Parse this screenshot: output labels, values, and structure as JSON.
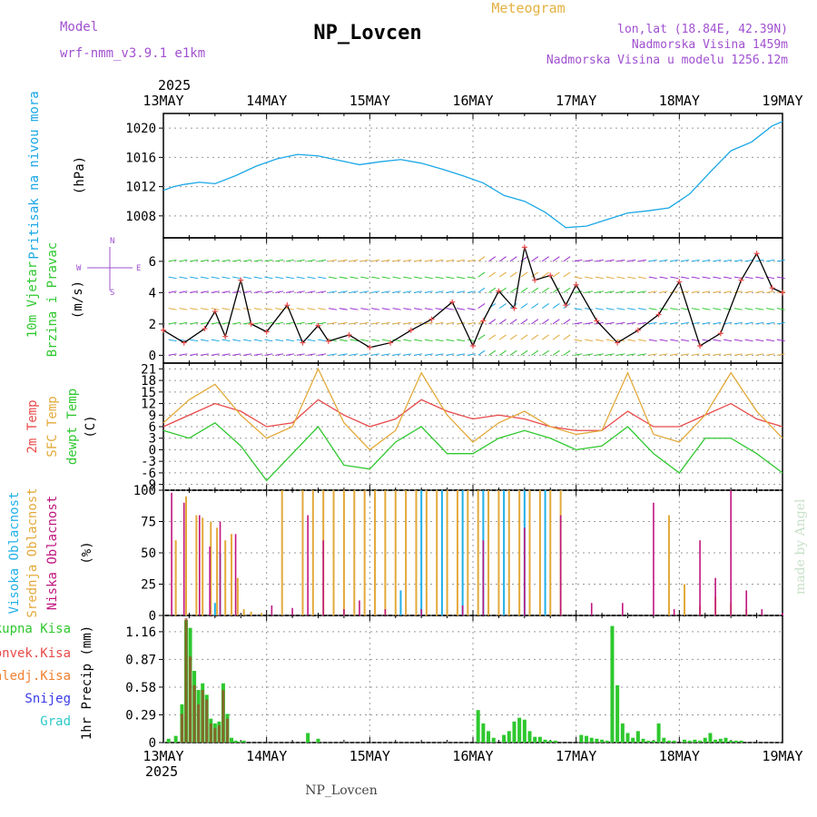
{
  "header": {
    "model_label": "Model",
    "model_name": "wrf-nmm_v3.9.1 e1km",
    "station": "NP_Lovcen",
    "product": "Meteogram",
    "lonlat": "lon,lat (18.84E, 42.39N)",
    "altitude": "Nadmorska Visina 1459m",
    "model_altitude": "Nadmorska Visina u modelu 1256.12m",
    "footer_station": "NP_Lovcen",
    "credit": "made by Angel"
  },
  "time_axis": {
    "year": "2025",
    "labels": [
      "13MAY",
      "14MAY",
      "15MAY",
      "16MAY",
      "17MAY",
      "18MAY",
      "19MAY"
    ]
  },
  "colors": {
    "pressure": "#1aa7e6",
    "t2m": "#e84a4a",
    "sfc": "#e3a93a",
    "dewpt": "#2ec82e",
    "high_cloud": "#22b0e8",
    "mid_cloud": "#e3a93a",
    "low_cloud": "#c0157f",
    "total_precip": "#2ec82e",
    "conv_precip": "#e84a4a",
    "ice_precip": "#f08030",
    "snow": "#3a3ae8",
    "hail": "#2ec8c8",
    "wind_barb": "#9a2ad0"
  },
  "chart_data": [
    {
      "type": "line",
      "panel": "pressure",
      "ylabel_name": "Pritisak na nivou mora",
      "unit": "(hPa)",
      "yticks": [
        "1020",
        "1016",
        "1012",
        "1008"
      ],
      "ylim": [
        1005,
        1022
      ],
      "x_days": [
        0,
        0.1,
        0.2,
        0.35,
        0.5,
        0.7,
        0.9,
        1.1,
        1.3,
        1.5,
        1.7,
        1.9,
        2.1,
        2.3,
        2.5,
        2.7,
        2.9,
        3.1,
        3.3,
        3.5,
        3.7,
        3.9,
        4.1,
        4.3,
        4.5,
        4.7,
        4.9,
        5.1,
        5.3,
        5.5,
        5.7,
        5.9,
        6.0
      ],
      "series": [
        {
          "values": [
            1011.5,
            1012,
            1012.3,
            1012.6,
            1012.4,
            1013.5,
            1014.8,
            1015.8,
            1016.4,
            1016.2,
            1015.6,
            1015,
            1015.4,
            1015.7,
            1015.2,
            1014.4,
            1013.5,
            1012.5,
            1010.8,
            1010,
            1008.5,
            1006.4,
            1006.6,
            1007.5,
            1008.4,
            1008.7,
            1009.1,
            1011,
            1014,
            1016.9,
            1018.1,
            1020.3,
            1020.9
          ]
        }
      ]
    },
    {
      "type": "line",
      "panel": "wind",
      "ylabel_name": "10m Vjetar Brzina i Pravac",
      "unit": "(m/s)",
      "compass": [
        "N",
        "W",
        "E",
        "S"
      ],
      "yticks": [
        "6",
        "4",
        "2",
        "0"
      ],
      "ylim": [
        -0.5,
        7.5
      ],
      "x_days": [
        0,
        0.2,
        0.4,
        0.5,
        0.6,
        0.75,
        0.85,
        1.0,
        1.2,
        1.35,
        1.5,
        1.6,
        1.8,
        2.0,
        2.2,
        2.4,
        2.6,
        2.8,
        3.0,
        3.1,
        3.25,
        3.4,
        3.5,
        3.6,
        3.75,
        3.9,
        4.0,
        4.2,
        4.4,
        4.6,
        4.8,
        5.0,
        5.2,
        5.4,
        5.6,
        5.75,
        5.9,
        6.0
      ],
      "series": [
        {
          "values": [
            1.6,
            0.8,
            1.7,
            2.8,
            1.2,
            4.8,
            2.0,
            1.5,
            3.2,
            0.8,
            1.9,
            0.9,
            1.3,
            0.5,
            0.8,
            1.6,
            2.3,
            3.4,
            0.6,
            2.2,
            4.1,
            3.0,
            6.9,
            4.8,
            5.1,
            3.2,
            4.5,
            2.2,
            0.8,
            1.6,
            2.6,
            4.7,
            0.6,
            1.4,
            4.8,
            6.5,
            4.3,
            4.0
          ]
        }
      ]
    },
    {
      "type": "line",
      "panel": "temperature",
      "ylabel_names": [
        "2m Temp",
        "SFC Temp",
        "dewpt Temp"
      ],
      "unit": "(C)",
      "yticks": [
        "21",
        "18",
        "15",
        "12",
        "9",
        "6",
        "3",
        "0",
        "-3",
        "-6",
        "-9"
      ],
      "ylim": [
        -10.5,
        22.5
      ],
      "x_days": [
        0,
        0.25,
        0.5,
        0.75,
        1.0,
        1.25,
        1.5,
        1.75,
        2.0,
        2.25,
        2.5,
        2.75,
        3.0,
        3.25,
        3.5,
        3.75,
        4.0,
        4.25,
        4.5,
        4.75,
        5.0,
        5.25,
        5.5,
        5.75,
        6.0
      ],
      "series": [
        {
          "name": "2m Temp",
          "values": [
            6,
            9,
            12,
            10,
            6,
            7,
            13,
            9,
            6,
            8,
            13,
            10,
            8,
            9,
            8,
            6,
            5,
            5,
            10,
            6,
            6,
            9,
            12,
            8,
            6
          ]
        },
        {
          "name": "SFC Temp",
          "values": [
            7,
            13,
            17,
            9,
            3,
            6,
            21,
            7,
            0,
            5,
            20,
            9,
            2,
            7,
            10,
            6,
            4,
            5,
            20,
            4,
            2,
            9,
            20,
            10,
            3
          ]
        },
        {
          "name": "dewpt Temp",
          "values": [
            5,
            3,
            7,
            1,
            -8,
            -1,
            6,
            -4,
            -5,
            2,
            6,
            -1,
            -1,
            3,
            5,
            3,
            0,
            1,
            6,
            -1,
            -6,
            3,
            3,
            -1,
            -6
          ]
        }
      ]
    },
    {
      "type": "bar",
      "panel": "cloud",
      "ylabel_names": [
        "Visoka Oblacnost",
        "Srednja Oblacnost",
        "Niska Oblacnost"
      ],
      "unit": "(%)",
      "yticks": [
        "100",
        "75",
        "50",
        "25",
        "0"
      ],
      "ylim": [
        0,
        100
      ],
      "low_x_days": [
        0.08,
        0.2,
        0.35,
        0.45,
        0.55,
        0.7,
        1.05,
        1.25,
        1.4,
        1.55,
        1.75,
        1.9,
        2.15,
        2.5,
        2.9,
        3.1,
        3.5,
        3.85,
        4.15,
        4.45,
        4.75,
        4.95,
        5.2,
        5.35,
        5.5,
        5.65,
        5.8,
        6.0
      ],
      "low_values": [
        98,
        90,
        80,
        55,
        75,
        65,
        8,
        6,
        80,
        60,
        5,
        12,
        5,
        5,
        8,
        60,
        70,
        80,
        10,
        10,
        90,
        5,
        60,
        30,
        100,
        20,
        5,
        2
      ],
      "mid_x_days": [
        0.12,
        0.22,
        0.32,
        0.38,
        0.46,
        0.52,
        0.6,
        0.66,
        0.72,
        0.78,
        0.85,
        0.95,
        1.15,
        1.35,
        1.45,
        1.55,
        1.65,
        1.75,
        1.85,
        1.95,
        2.05,
        2.15,
        2.25,
        2.35,
        2.45,
        2.55,
        2.65,
        2.75,
        2.85,
        2.95,
        3.05,
        3.15,
        3.25,
        3.35,
        3.45,
        3.55,
        3.65,
        3.75,
        3.85,
        4.9,
        5.05,
        5.2,
        5.35,
        5.5,
        5.65
      ],
      "mid_values": [
        60,
        95,
        80,
        78,
        75,
        70,
        60,
        65,
        30,
        5,
        3,
        2,
        100,
        100,
        100,
        100,
        100,
        100,
        100,
        100,
        100,
        100,
        100,
        100,
        100,
        100,
        100,
        100,
        100,
        100,
        100,
        100,
        100,
        100,
        100,
        100,
        100,
        100,
        100,
        80,
        25,
        8,
        15,
        10,
        5
      ],
      "high_x_days": [
        0.5,
        0.55,
        2.3,
        2.5,
        2.7,
        2.9,
        3.1,
        3.3,
        3.5,
        3.7
      ],
      "high_values": [
        10,
        50,
        20,
        100,
        100,
        100,
        100,
        100,
        100,
        100
      ]
    },
    {
      "type": "bar",
      "panel": "precip",
      "ylabel_names": [
        "Ukupna Kisa",
        "Konvek.Kisa",
        "Zaledj.Kisa",
        "Snijeg",
        "Grad"
      ],
      "unit": "1hr Precip (mm)",
      "yticks": [
        "1.16",
        "0.87",
        "0.58",
        "0.29",
        "0"
      ],
      "ylim": [
        0,
        1.33
      ],
      "x_days": [
        0.05,
        0.12,
        0.18,
        0.22,
        0.26,
        0.3,
        0.34,
        0.38,
        0.42,
        0.46,
        0.5,
        0.54,
        0.58,
        0.62,
        0.66,
        0.7,
        0.74,
        0.78,
        1.4,
        1.5,
        3.05,
        3.1,
        3.15,
        3.2,
        3.3,
        3.35,
        3.4,
        3.45,
        3.5,
        3.55,
        3.6,
        3.65,
        3.7,
        3.75,
        3.8,
        4.05,
        4.1,
        4.15,
        4.2,
        4.25,
        4.3,
        4.35,
        4.4,
        4.45,
        4.5,
        4.55,
        4.6,
        4.65,
        4.7,
        4.75,
        4.8,
        4.85,
        4.9,
        4.95,
        5.05,
        5.1,
        5.15,
        5.2,
        5.25,
        5.3,
        5.35,
        5.4,
        5.45,
        5.5,
        5.55,
        5.6
      ],
      "values": [
        0.04,
        0.07,
        0.4,
        1.28,
        1.2,
        0.75,
        0.55,
        0.62,
        0.5,
        0.25,
        0.2,
        0.22,
        0.62,
        0.3,
        0.05,
        0.02,
        0.01,
        0.02,
        0.1,
        0.04,
        0.34,
        0.2,
        0.12,
        0.05,
        0.08,
        0.12,
        0.22,
        0.26,
        0.24,
        0.12,
        0.06,
        0.06,
        0.03,
        0.02,
        0.02,
        0.08,
        0.07,
        0.05,
        0.04,
        0.03,
        0.02,
        1.22,
        0.6,
        0.2,
        0.1,
        0.05,
        0.12,
        0.04,
        0.02,
        0.02,
        0.2,
        0.05,
        0.02,
        0.02,
        0.03,
        0.02,
        0.03,
        0.02,
        0.05,
        0.1,
        0.03,
        0.04,
        0.05,
        0.02,
        0.02,
        0.02
      ],
      "conv_values": [
        0,
        0,
        0.3,
        1.3,
        0.9,
        0.6,
        0.4,
        0.55,
        0.45,
        0.2,
        0.15,
        0.18,
        0.55,
        0.25,
        0,
        0,
        0,
        0,
        0,
        0,
        0,
        0,
        0,
        0,
        0,
        0,
        0,
        0,
        0,
        0,
        0,
        0,
        0,
        0,
        0,
        0,
        0,
        0,
        0,
        0,
        0,
        0,
        0,
        0,
        0,
        0,
        0,
        0,
        0,
        0,
        0,
        0,
        0,
        0,
        0,
        0,
        0,
        0,
        0,
        0,
        0,
        0,
        0,
        0,
        0,
        0
      ]
    }
  ]
}
